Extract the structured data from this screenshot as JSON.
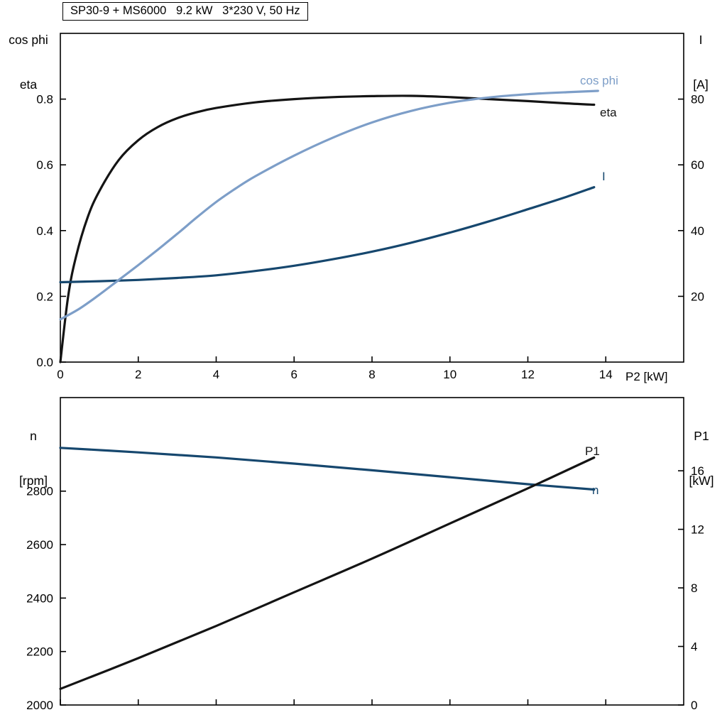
{
  "title": "SP30-9 + MS6000   9.2 kW   3*230 V, 50 Hz",
  "colors": {
    "black": "#141414",
    "light_blue": "#7d9ec8",
    "dark_blue": "#16476e"
  },
  "labels": {
    "top_left_line1": "cos phi",
    "top_left_line2": "eta",
    "top_right_line1": "I",
    "top_right_line2": "[A]",
    "mid_left_line1": "n",
    "mid_left_line2": "[rpm]",
    "mid_right_line1": "P1",
    "mid_right_line2": "[kW]",
    "x_axis_label": "P2 [kW]"
  },
  "curve_labels": {
    "cos_phi": "cos phi",
    "eta": "eta",
    "current": "I",
    "p1": "P1",
    "n": "n"
  },
  "chart_data": [
    {
      "type": "line",
      "title": "SP30-9 + MS6000   9.2 kW   3*230 V, 50 Hz",
      "xlabel": "P2 [kW]",
      "x_range": [
        0,
        16
      ],
      "x_ticks": [
        0,
        2,
        4,
        6,
        8,
        10,
        12,
        14
      ],
      "x_tick_labels": [
        "0",
        "2",
        "4",
        "6",
        "8",
        "10",
        "12",
        "14"
      ],
      "left_axis": {
        "label": "cos phi / eta",
        "range": [
          0,
          1.0
        ],
        "ticks": [
          0.0,
          0.2,
          0.4,
          0.6,
          0.8
        ],
        "tick_labels": [
          "0.0",
          "0.2",
          "0.4",
          "0.6",
          "0.8"
        ]
      },
      "right_axis": {
        "label": "I [A]",
        "range": [
          0,
          100
        ],
        "ticks": [
          20,
          40,
          60,
          80
        ],
        "tick_labels": [
          "20",
          "40",
          "60",
          "80"
        ]
      },
      "series": [
        {
          "name": "eta",
          "axis": "left",
          "color_key": "black",
          "points": [
            [
              0,
              0
            ],
            [
              0.2,
              0.2
            ],
            [
              0.4,
              0.32
            ],
            [
              0.7,
              0.44
            ],
            [
              1.0,
              0.52
            ],
            [
              1.5,
              0.615
            ],
            [
              2,
              0.675
            ],
            [
              2.5,
              0.715
            ],
            [
              3,
              0.742
            ],
            [
              3.5,
              0.76
            ],
            [
              4,
              0.773
            ],
            [
              5,
              0.79
            ],
            [
              6,
              0.8
            ],
            [
              7,
              0.806
            ],
            [
              8,
              0.809
            ],
            [
              9,
              0.81
            ],
            [
              10,
              0.806
            ],
            [
              11,
              0.8
            ],
            [
              12,
              0.794
            ],
            [
              13,
              0.787
            ],
            [
              13.7,
              0.783
            ]
          ]
        },
        {
          "name": "I",
          "axis": "right",
          "color_key": "dark_blue",
          "points": [
            [
              0,
              24.3
            ],
            [
              1,
              24.6
            ],
            [
              2,
              25.0
            ],
            [
              3,
              25.6
            ],
            [
              4,
              26.4
            ],
            [
              5,
              27.7
            ],
            [
              6,
              29.3
            ],
            [
              7,
              31.3
            ],
            [
              8,
              33.6
            ],
            [
              9,
              36.3
            ],
            [
              10,
              39.4
            ],
            [
              11,
              42.8
            ],
            [
              12,
              46.5
            ],
            [
              13,
              50.3
            ],
            [
              13.7,
              53.2
            ]
          ]
        },
        {
          "name": "cos phi",
          "axis": "left",
          "color_key": "light_blue",
          "points": [
            [
              0,
              0.13
            ],
            [
              0.5,
              0.163
            ],
            [
              1,
              0.205
            ],
            [
              1.5,
              0.25
            ],
            [
              2,
              0.295
            ],
            [
              2.5,
              0.342
            ],
            [
              3,
              0.39
            ],
            [
              3.5,
              0.44
            ],
            [
              4,
              0.487
            ],
            [
              4.5,
              0.528
            ],
            [
              5,
              0.565
            ],
            [
              6,
              0.628
            ],
            [
              7,
              0.683
            ],
            [
              8,
              0.729
            ],
            [
              9,
              0.764
            ],
            [
              10,
              0.789
            ],
            [
              11,
              0.805
            ],
            [
              12,
              0.815
            ],
            [
              13,
              0.821
            ],
            [
              13.8,
              0.825
            ]
          ]
        }
      ]
    },
    {
      "type": "line",
      "xlabel": "",
      "x_range": [
        0,
        16
      ],
      "x_ticks": [
        0,
        2,
        4,
        6,
        8,
        10,
        12,
        14
      ],
      "x_tick_labels": null,
      "left_axis": {
        "label": "n [rpm]",
        "range": [
          2000,
          3150
        ],
        "ticks": [
          2000,
          2200,
          2400,
          2600,
          2800
        ],
        "tick_labels": [
          "2000",
          "2200",
          "2400",
          "2600",
          "2800"
        ]
      },
      "right_axis": {
        "label": "P1 [kW]",
        "range": [
          0,
          21
        ],
        "ticks": [
          0,
          4,
          8,
          12,
          16
        ],
        "tick_labels": [
          "0",
          "4",
          "8",
          "12",
          "16"
        ]
      },
      "series": [
        {
          "name": "n",
          "axis": "left",
          "color_key": "dark_blue",
          "points": [
            [
              0,
              2962
            ],
            [
              2,
              2945
            ],
            [
              4,
              2926
            ],
            [
              6,
              2903
            ],
            [
              8,
              2878
            ],
            [
              10,
              2852
            ],
            [
              12,
              2826
            ],
            [
              13.7,
              2806
            ]
          ]
        },
        {
          "name": "P1",
          "axis": "right",
          "color_key": "black",
          "points": [
            [
              0,
              1.1
            ],
            [
              2,
              3.2
            ],
            [
              4,
              5.4
            ],
            [
              6,
              7.7
            ],
            [
              8,
              10.0
            ],
            [
              10,
              12.4
            ],
            [
              12,
              14.8
            ],
            [
              13.7,
              16.9
            ]
          ]
        }
      ]
    }
  ]
}
